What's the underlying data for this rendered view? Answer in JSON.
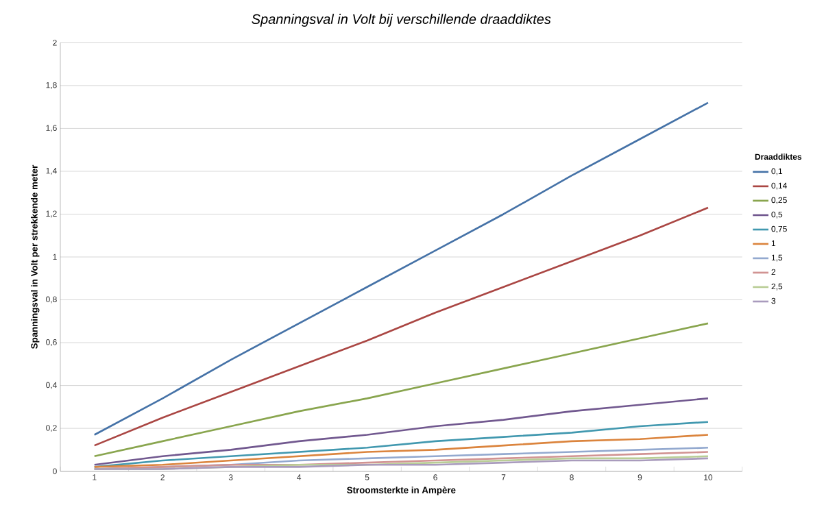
{
  "chart_data": {
    "type": "line",
    "title": "Spanningsval in Volt bij verschillende draaddiktes",
    "xlabel": "Stroomsterkte in Ampère",
    "ylabel": "Spanningsval in Volt per strekkende meter",
    "legend_title": "Draaddiktes",
    "categories": [
      "1",
      "2",
      "3",
      "4",
      "5",
      "6",
      "7",
      "8",
      "9",
      "10"
    ],
    "series": [
      {
        "name": "0,1",
        "color": "#4572a7",
        "values": [
          0.17,
          0.34,
          0.52,
          0.69,
          0.86,
          1.03,
          1.2,
          1.38,
          1.55,
          1.72
        ]
      },
      {
        "name": "0,14",
        "color": "#aa4643",
        "values": [
          0.12,
          0.25,
          0.37,
          0.49,
          0.61,
          0.74,
          0.86,
          0.98,
          1.1,
          1.23
        ]
      },
      {
        "name": "0,25",
        "color": "#89a54e",
        "values": [
          0.07,
          0.14,
          0.21,
          0.28,
          0.34,
          0.41,
          0.48,
          0.55,
          0.62,
          0.69
        ]
      },
      {
        "name": "0,5",
        "color": "#71588f",
        "values": [
          0.03,
          0.07,
          0.1,
          0.14,
          0.17,
          0.21,
          0.24,
          0.28,
          0.31,
          0.34
        ]
      },
      {
        "name": "0,75",
        "color": "#4198af",
        "values": [
          0.02,
          0.05,
          0.07,
          0.09,
          0.11,
          0.14,
          0.16,
          0.18,
          0.21,
          0.23
        ]
      },
      {
        "name": "1",
        "color": "#db843d",
        "values": [
          0.02,
          0.03,
          0.05,
          0.07,
          0.09,
          0.1,
          0.12,
          0.14,
          0.15,
          0.17
        ]
      },
      {
        "name": "1,5",
        "color": "#93a9cf",
        "values": [
          0.01,
          0.02,
          0.03,
          0.05,
          0.06,
          0.07,
          0.08,
          0.09,
          0.1,
          0.11
        ]
      },
      {
        "name": "2",
        "color": "#d19392",
        "values": [
          0.01,
          0.02,
          0.03,
          0.03,
          0.04,
          0.05,
          0.06,
          0.07,
          0.08,
          0.09
        ]
      },
      {
        "name": "2,5",
        "color": "#b9cd96",
        "values": [
          0.01,
          0.01,
          0.02,
          0.03,
          0.03,
          0.04,
          0.05,
          0.06,
          0.06,
          0.07
        ]
      },
      {
        "name": "3",
        "color": "#a99bbd",
        "values": [
          0.01,
          0.01,
          0.02,
          0.02,
          0.03,
          0.03,
          0.04,
          0.05,
          0.05,
          0.06
        ]
      }
    ],
    "ylim": [
      0,
      2
    ],
    "yticks": [
      0,
      {
        "value": 0.2,
        "label": "0,2"
      },
      {
        "value": 0.4,
        "label": "0,4"
      },
      {
        "value": 0.6,
        "label": "0,6"
      },
      {
        "value": 0.8,
        "label": "0,8"
      },
      1,
      {
        "value": 1.2,
        "label": "1,2"
      },
      {
        "value": 1.4,
        "label": "1,4"
      },
      {
        "value": 1.6,
        "label": "1,6"
      },
      {
        "value": 1.8,
        "label": "1,8"
      },
      2
    ],
    "grid": "y",
    "legend": "right",
    "marker": "none",
    "line_style": "solid"
  }
}
